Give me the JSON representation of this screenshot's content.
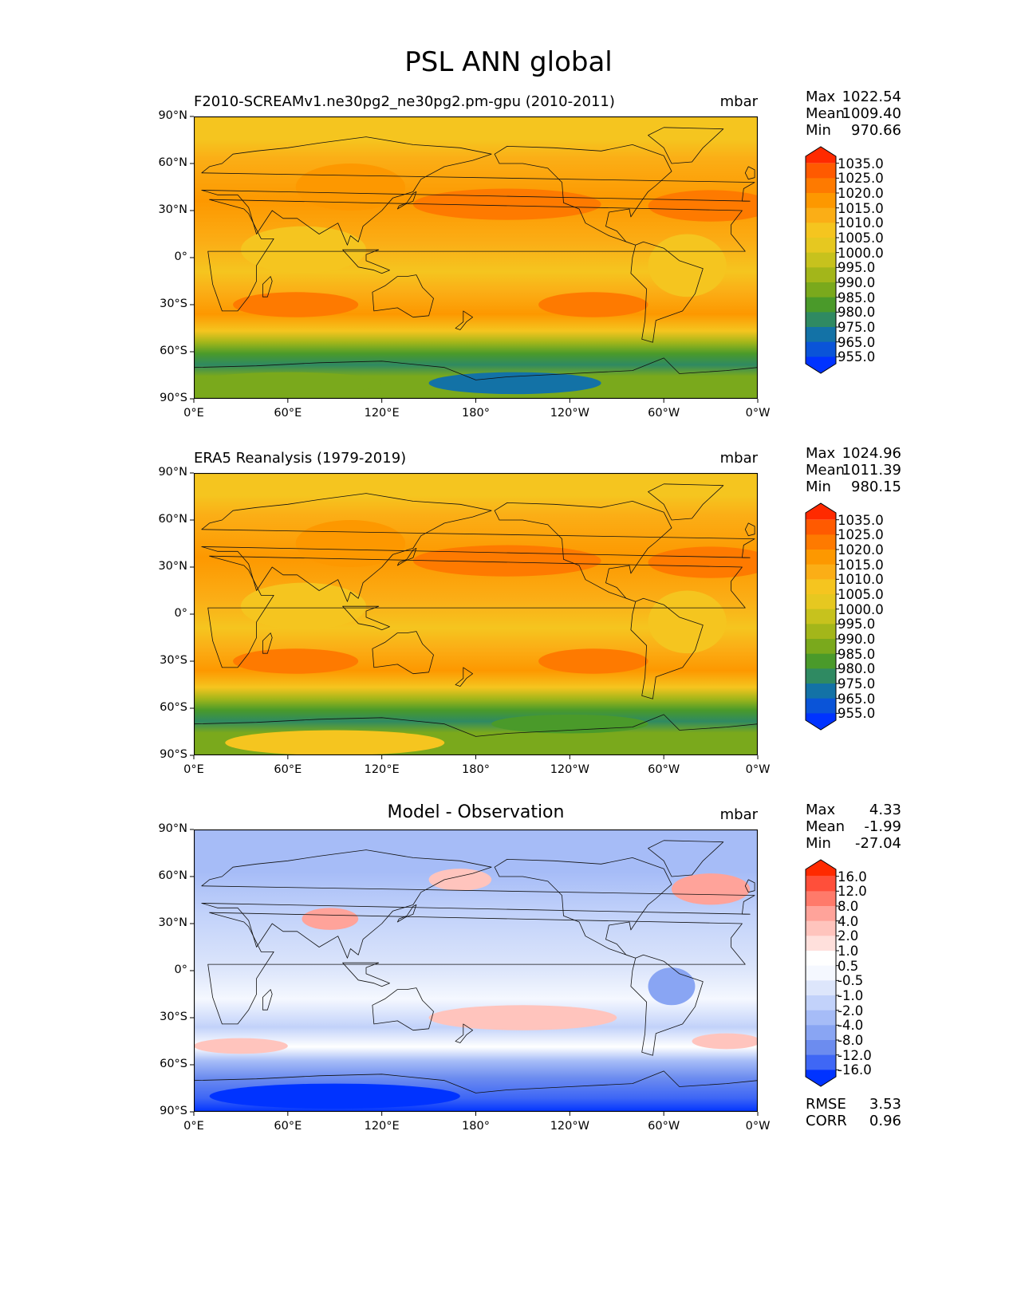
{
  "title": "PSL ANN global",
  "panels": [
    {
      "id": "model",
      "title": "F2010-SCREAMv1.ne30pg2_ne30pg2.pm-gpu (2010-2011)",
      "title_centered": false,
      "units": "mbar",
      "stats": {
        "max_label": "Max",
        "max": "1022.54",
        "mean_label": "Mean",
        "mean": "1009.40",
        "min_label": "Min",
        "min": "970.66"
      },
      "colorbar_labels": [
        "1035.0",
        "1025.0",
        "1020.0",
        "1015.0",
        "1010.0",
        "1005.0",
        "1000.0",
        "995.0",
        "990.0",
        "985.0",
        "980.0",
        "975.0",
        "965.0",
        "955.0"
      ]
    },
    {
      "id": "obs",
      "title": "ERA5 Reanalysis (1979-2019)",
      "title_centered": false,
      "units": "mbar",
      "stats": {
        "max_label": "Max",
        "max": "1024.96",
        "mean_label": "Mean",
        "mean": "1011.39",
        "min_label": "Min",
        "min": "980.15"
      },
      "colorbar_labels": [
        "1035.0",
        "1025.0",
        "1020.0",
        "1015.0",
        "1010.0",
        "1005.0",
        "1000.0",
        "995.0",
        "990.0",
        "985.0",
        "980.0",
        "975.0",
        "965.0",
        "955.0"
      ]
    },
    {
      "id": "diff",
      "title": "Model - Observation",
      "title_centered": true,
      "units": "mbar",
      "stats": {
        "max_label": "Max",
        "max": "4.33",
        "mean_label": "Mean",
        "mean": "-1.99",
        "min_label": "Min",
        "min": "-27.04"
      },
      "colorbar_labels": [
        "16.0",
        "12.0",
        "8.0",
        "4.0",
        "2.0",
        "1.0",
        "0.5",
        "-0.5",
        "-1.0",
        "-2.0",
        "-4.0",
        "-8.0",
        "-12.0",
        "-16.0"
      ],
      "extra_stats": {
        "rmse_label": "RMSE",
        "rmse": "3.53",
        "corr_label": "CORR",
        "corr": "0.96"
      }
    }
  ],
  "lat_ticks": [
    "90°N",
    "60°N",
    "30°N",
    "0°",
    "30°S",
    "60°S",
    "90°S"
  ],
  "lon_ticks": [
    "0°E",
    "60°E",
    "120°E",
    "180°",
    "120°W",
    "60°W",
    "0°W"
  ],
  "colors": {
    "abs_scale": [
      "#ff2a00",
      "#ff5a00",
      "#fe7a00",
      "#fd9800",
      "#fbae16",
      "#f5c51f",
      "#e6c820",
      "#c7c21d",
      "#a3b61a",
      "#7aa91c",
      "#4a9a2a",
      "#2f8a62",
      "#1372a6",
      "#0a54d8",
      "#0033ff"
    ],
    "diff_scale": [
      "#ff2a00",
      "#ff4f3a",
      "#ff7a6a",
      "#ffa39a",
      "#ffc4bd",
      "#ffe0dc",
      "#ffffff",
      "#f5f8ff",
      "#dde6fb",
      "#c2d2fa",
      "#a6bcf7",
      "#89a5f3",
      "#6c8cef",
      "#3f67f5",
      "#0033ff"
    ]
  }
}
